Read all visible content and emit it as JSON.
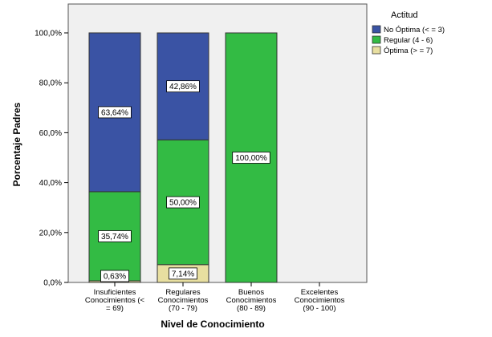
{
  "chart_data": {
    "type": "bar",
    "stacked": true,
    "title": "",
    "xlabel": "Nivel de Conocimiento",
    "ylabel": "Porcentaje Padres",
    "ylim": [
      0,
      100
    ],
    "yticks": [
      "0,0%",
      "20,0%",
      "40,0%",
      "60,0%",
      "80,0%",
      "100,0%"
    ],
    "grid": false,
    "legend_position": "top-right",
    "legend_title": "Actitud",
    "categories": [
      [
        "Insuficientes",
        "Conocimientos (<",
        "= 69)"
      ],
      [
        "Regulares",
        "Conocimientos",
        "(70 - 79)"
      ],
      [
        "Buenos",
        "Conocimientos",
        "(80 - 89)"
      ],
      [
        "Excelentes",
        "Conocimientos",
        "(90 - 100)"
      ]
    ],
    "series": [
      {
        "name": "Óptima (> = 7)",
        "color": "#e8dfa0",
        "values": [
          0.63,
          7.14,
          0,
          0
        ],
        "labels": [
          "0,63%",
          "7,14%",
          "",
          ""
        ]
      },
      {
        "name": "Regular (4 - 6)",
        "color": "#33bb44",
        "values": [
          35.74,
          50.0,
          100.0,
          0
        ],
        "labels": [
          "35,74%",
          "50,00%",
          "100,00%",
          ""
        ]
      },
      {
        "name": "No Óptima (< = 3)",
        "color": "#3a53a4",
        "values": [
          63.64,
          42.86,
          0,
          0
        ],
        "labels": [
          "63,64%",
          "42,86%",
          "",
          ""
        ]
      }
    ],
    "legend_order": [
      2,
      1,
      0
    ]
  }
}
